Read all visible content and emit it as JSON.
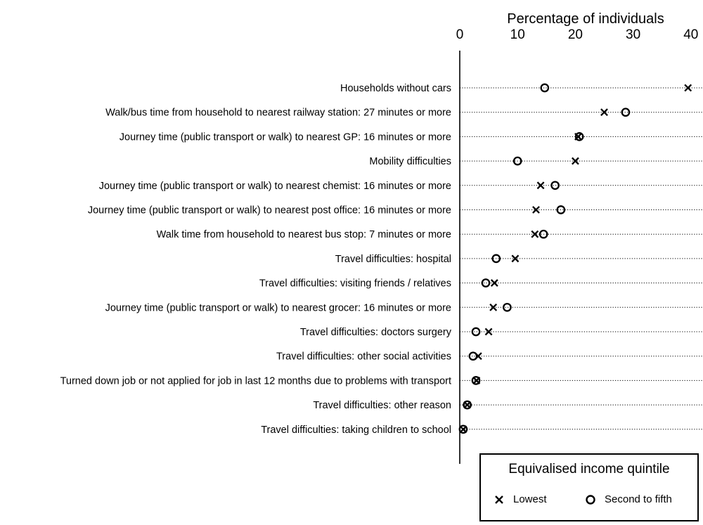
{
  "chart_data": {
    "type": "scatter",
    "orientation": "horizontal-dot-plot",
    "xlabel": "Percentage of individuals",
    "xlim": [
      0,
      40
    ],
    "xticks": [
      0,
      10,
      20,
      30,
      40
    ],
    "grid": "dotted horizontal guide lines",
    "categories": [
      "Households without cars",
      "Walk/bus time from household to nearest railway station: 27 minutes or more",
      "Journey time (public transport or walk) to nearest GP: 16 minutes or more",
      "Mobility difficulties",
      "Journey time (public transport or walk) to nearest chemist: 16 minutes or more",
      "Journey time (public transport or walk) to nearest post office: 16 minutes or more",
      "Walk time from household to nearest bus stop: 7 minutes or more",
      "Travel difficulties: hospital",
      "Travel difficulties: visiting friends / relatives",
      "Journey time (public transport or walk) to nearest grocer: 16 minutes or more",
      "Travel difficulties: doctors surgery",
      "Travel difficulties: other social activities",
      "Turned down job or not applied for job in last 12 months due to problems with transport",
      "Travel difficulties: other reason",
      "Travel difficulties: taking children to school"
    ],
    "series": [
      {
        "name": "Lowest",
        "marker": "cross",
        "values": [
          39.5,
          25,
          20.5,
          20,
          14,
          13.2,
          13,
          9.6,
          6,
          5.8,
          5,
          3.2,
          2.9,
          1.3,
          0.6
        ]
      },
      {
        "name": "Second to fifth",
        "marker": "circle",
        "values": [
          14.7,
          28.7,
          20.7,
          10,
          16.5,
          17.5,
          14.5,
          6.3,
          4.5,
          8.2,
          2.8,
          2.3,
          2.8,
          1.3,
          0.6
        ]
      }
    ],
    "legend": {
      "title": "Equivalised income quintile",
      "position": "bottom-right"
    }
  }
}
